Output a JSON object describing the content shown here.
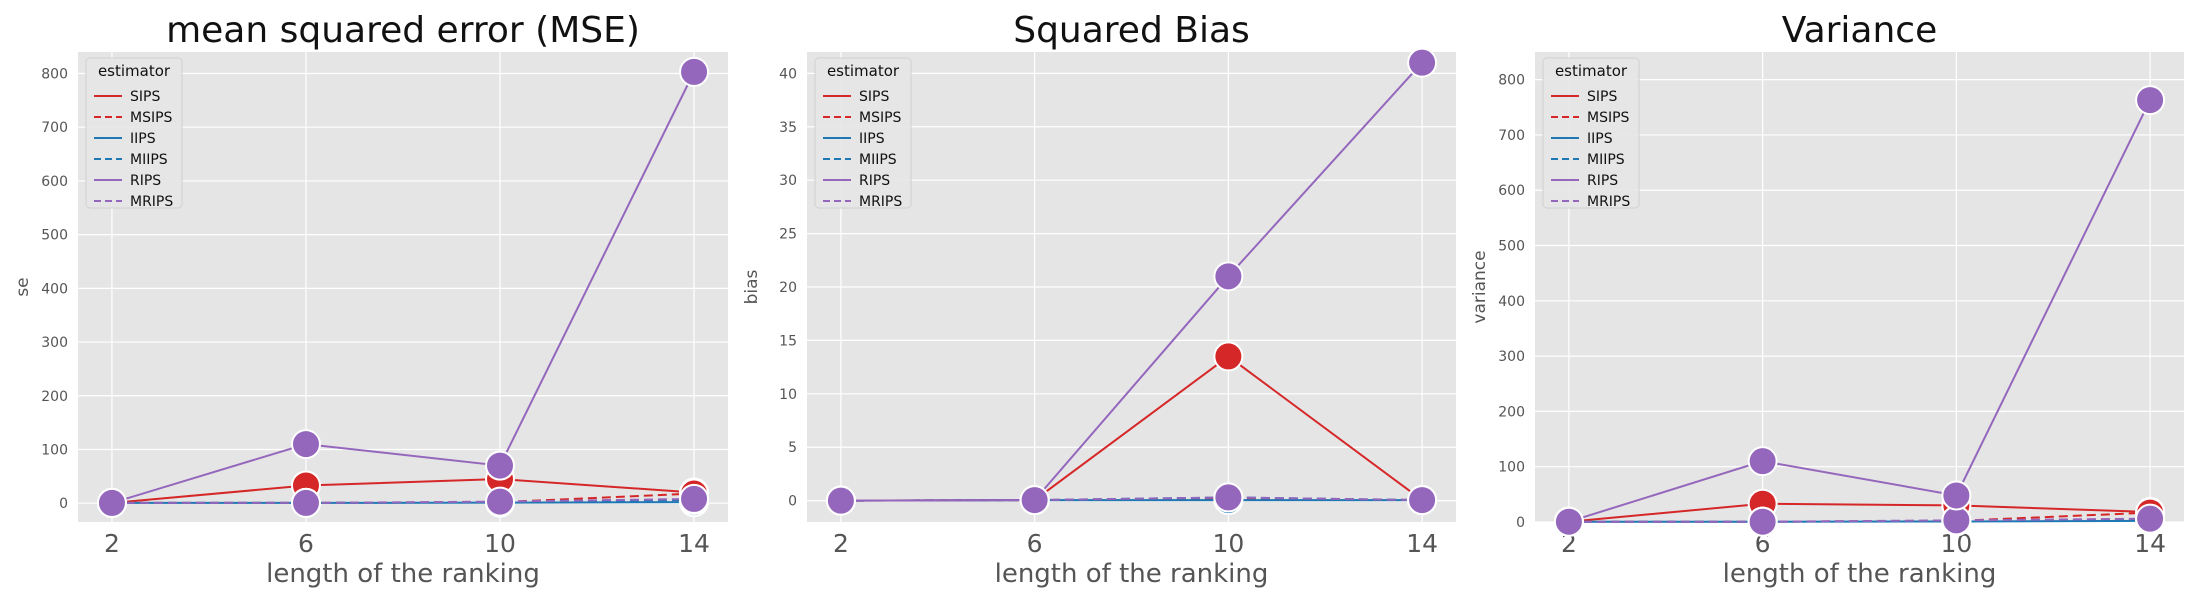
{
  "figure": {
    "legend_title": "estimator",
    "legend_placement": "top-left"
  },
  "chart_data": [
    {
      "type": "line",
      "title": "mean squared error (MSE)",
      "xlabel": "length of the ranking",
      "ylabel": "se",
      "x": [
        2,
        6,
        10,
        14
      ],
      "xticks": [
        "2",
        "6",
        "10",
        "14"
      ],
      "yticks": [
        0,
        100,
        200,
        300,
        400,
        500,
        600,
        700,
        800
      ],
      "ylim": [
        -35,
        840
      ],
      "grid": true,
      "series": [
        {
          "name": "SIPS",
          "color": "#d62728",
          "dash": "solid",
          "values": [
            0.5,
            33,
            45,
            20
          ]
        },
        {
          "name": "MSIPS",
          "color": "#d62728",
          "dash": "dashed",
          "values": [
            0.5,
            0.5,
            2,
            18
          ]
        },
        {
          "name": "IIPS",
          "color": "#1f77b4",
          "dash": "solid",
          "values": [
            0.5,
            0.5,
            1,
            2
          ]
        },
        {
          "name": "MIIPS",
          "color": "#1f77b4",
          "dash": "dashed",
          "values": [
            0.5,
            0.5,
            2,
            6
          ]
        },
        {
          "name": "RIPS",
          "color": "#9467bd",
          "dash": "solid",
          "values": [
            0.5,
            110,
            70,
            803
          ]
        },
        {
          "name": "MRIPS",
          "color": "#9467bd",
          "dash": "dashed",
          "values": [
            0.5,
            0.5,
            3,
            8
          ]
        }
      ]
    },
    {
      "type": "line",
      "title": "Squared Bias",
      "xlabel": "length of the ranking",
      "ylabel": "bias",
      "x": [
        2,
        6,
        10,
        14
      ],
      "xticks": [
        "2",
        "6",
        "10",
        "14"
      ],
      "yticks": [
        0,
        5,
        10,
        15,
        20,
        25,
        30,
        35,
        40
      ],
      "ylim": [
        -2,
        42
      ],
      "grid": true,
      "series": [
        {
          "name": "SIPS",
          "color": "#d62728",
          "dash": "solid",
          "values": [
            0,
            0.05,
            13.5,
            0.05
          ]
        },
        {
          "name": "MSIPS",
          "color": "#d62728",
          "dash": "dashed",
          "values": [
            0,
            0.05,
            0.2,
            0.05
          ]
        },
        {
          "name": "IIPS",
          "color": "#1f77b4",
          "dash": "solid",
          "values": [
            0,
            0.05,
            0.05,
            0.05
          ]
        },
        {
          "name": "MIIPS",
          "color": "#1f77b4",
          "dash": "dashed",
          "values": [
            0,
            0.05,
            0.3,
            0.05
          ]
        },
        {
          "name": "RIPS",
          "color": "#9467bd",
          "dash": "solid",
          "values": [
            0,
            0.05,
            21,
            41
          ]
        },
        {
          "name": "MRIPS",
          "color": "#9467bd",
          "dash": "dashed",
          "values": [
            0,
            0.05,
            0.3,
            0.05
          ]
        }
      ]
    },
    {
      "type": "line",
      "title": "Variance",
      "xlabel": "length of the ranking",
      "ylabel": "variance",
      "x": [
        2,
        6,
        10,
        14
      ],
      "xticks": [
        "2",
        "6",
        "10",
        "14"
      ],
      "yticks": [
        0,
        100,
        200,
        300,
        400,
        500,
        600,
        700,
        800
      ],
      "ylim": [
        0,
        850
      ],
      "grid": true,
      "series": [
        {
          "name": "SIPS",
          "color": "#d62728",
          "dash": "solid",
          "values": [
            0.5,
            33,
            30,
            18
          ]
        },
        {
          "name": "MSIPS",
          "color": "#d62728",
          "dash": "dashed",
          "values": [
            0.5,
            0.5,
            2,
            17
          ]
        },
        {
          "name": "IIPS",
          "color": "#1f77b4",
          "dash": "solid",
          "values": [
            0.5,
            0.5,
            1,
            2
          ]
        },
        {
          "name": "MIIPS",
          "color": "#1f77b4",
          "dash": "dashed",
          "values": [
            0.5,
            0.5,
            2,
            5
          ]
        },
        {
          "name": "RIPS",
          "color": "#9467bd",
          "dash": "solid",
          "values": [
            0.5,
            110,
            48,
            763
          ]
        },
        {
          "name": "MRIPS",
          "color": "#9467bd",
          "dash": "dashed",
          "values": [
            0.5,
            0.5,
            3,
            6
          ]
        }
      ]
    }
  ]
}
